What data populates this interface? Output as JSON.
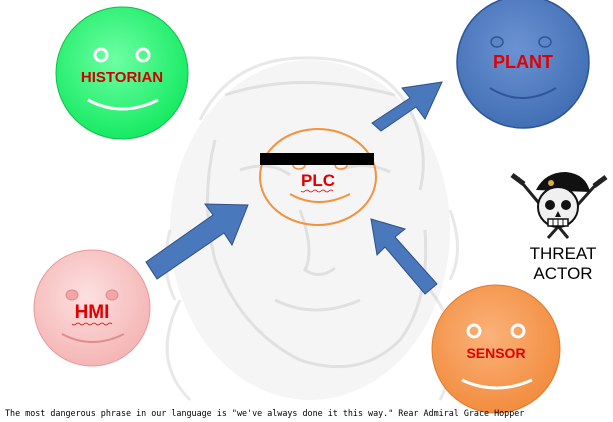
{
  "nodes": {
    "historian": {
      "label": "HISTORIAN",
      "fill": "#1dfa6d",
      "text_color": "#d00000"
    },
    "plant": {
      "label": "PLANT",
      "fill": "#4a78bd",
      "text_color": "#e00000"
    },
    "plc": {
      "label": "PLC",
      "stroke": "#f0923e",
      "text_color": "#e00000"
    },
    "hmi": {
      "label": "HMI",
      "fill": "#f8c0c0",
      "text_color": "#e00000"
    },
    "sensor": {
      "label": "SENSOR",
      "fill": "#f59445",
      "text_color": "#e00000"
    }
  },
  "threat_actor": {
    "line1": "THREAT",
    "line2": "ACTOR",
    "icon": "skull-beret-icon"
  },
  "arrows": {
    "fill": "#4a78bd",
    "stroke": "#2f4f85"
  },
  "quote": "The most dangerous phrase in our language is \"we've always done it this way.\" Rear Admiral Grace Hopper",
  "redaction_bar_color": "#000000"
}
